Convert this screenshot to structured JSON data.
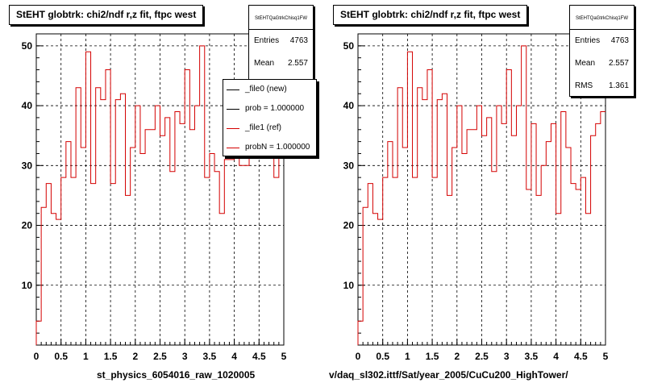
{
  "colors": {
    "ref": "#d40000",
    "new": "#000000",
    "grid": "#000000"
  },
  "left_panel": {
    "title": "StEHT globtrk: chi2/ndf r,z fit, ftpc west",
    "stats": {
      "name": "StEHTQaGtrkChisq1FW",
      "rows": [
        {
          "label": "Entries",
          "value": "4763"
        },
        {
          "label": "Mean",
          "value": "2.557"
        }
      ]
    },
    "legend": [
      {
        "label": "_file0 (new)",
        "color": "#000000"
      },
      {
        "label": "prob = 1.000000",
        "color": "#000000"
      },
      {
        "label": "_file1 (ref)",
        "color": "#d40000"
      },
      {
        "label": "probN = 1.000000",
        "color": "#d40000"
      }
    ],
    "xlabel": "st_physics_6054016_raw_1020005"
  },
  "right_panel": {
    "title": "StEHT globtrk: chi2/ndf r,z fit, ftpc west",
    "stats": {
      "name": "StEHTQaGtrkChisq1FW",
      "rows": [
        {
          "label": "Entries",
          "value": "4763"
        },
        {
          "label": "Mean",
          "value": "2.557"
        },
        {
          "label": "RMS",
          "value": "1.361"
        }
      ]
    },
    "xlabel": "v/daq_sl302.ittf/Sat/year_2005/CuCu200_HighTower/"
  },
  "chart_data": [
    {
      "type": "histogram",
      "title": "StEHT globtrk: chi2/ndf r,z fit, ftpc west",
      "xlabel": "st_physics_6054016_raw_1020005",
      "ylabel": "",
      "xlim": [
        0,
        5
      ],
      "ylim": [
        0,
        52
      ],
      "xticks": [
        "0",
        "0.5",
        "1",
        "1.5",
        "2",
        "2.5",
        "3",
        "3.5",
        "4",
        "4.5",
        "5"
      ],
      "yticks": [
        "10",
        "20",
        "30",
        "40",
        "50"
      ],
      "grid": true,
      "bin_edges": [
        0,
        0.1,
        0.2,
        0.3,
        0.4,
        0.5,
        0.6,
        0.7,
        0.8,
        0.9,
        1.0,
        1.1,
        1.2,
        1.3,
        1.4,
        1.5,
        1.6,
        1.7,
        1.8,
        1.9,
        2.0,
        2.1,
        2.2,
        2.3,
        2.4,
        2.5,
        2.6,
        2.7,
        2.8,
        2.9,
        3.0,
        3.1,
        3.2,
        3.3,
        3.4,
        3.5,
        3.6,
        3.7,
        3.8,
        3.9,
        4.0,
        4.1,
        4.2,
        4.3,
        4.4,
        4.5,
        4.6,
        4.7,
        4.8,
        4.9,
        5.0
      ],
      "series": [
        {
          "name": "_file1 (ref)",
          "color": "#d40000",
          "values": [
            4,
            23,
            27,
            22,
            21,
            28,
            34,
            28,
            43,
            33,
            49,
            27,
            43,
            41,
            46,
            27,
            41,
            42,
            25,
            33,
            40,
            32,
            36,
            36,
            40,
            35,
            38,
            29,
            39,
            37,
            46,
            36,
            40,
            50,
            28,
            32,
            29,
            22,
            31,
            31,
            32,
            30,
            30,
            36,
            38,
            35,
            37,
            40,
            28,
            35
          ],
          "note_values_after_index_33_partly_hidden": false
        }
      ]
    },
    {
      "type": "histogram",
      "title": "StEHT globtrk: chi2/ndf r,z fit, ftpc west",
      "xlabel": "v/daq_sl302.ittf/Sat/year_2005/CuCu200_HighTower/",
      "ylabel": "",
      "xlim": [
        0,
        5
      ],
      "ylim": [
        0,
        52
      ],
      "xticks": [
        "0",
        "0.5",
        "1",
        "1.5",
        "2",
        "2.5",
        "3",
        "3.5",
        "4",
        "4.5",
        "5"
      ],
      "yticks": [
        "10",
        "20",
        "30",
        "40",
        "50"
      ],
      "grid": true,
      "bin_edges": [
        0,
        0.1,
        0.2,
        0.3,
        0.4,
        0.5,
        0.6,
        0.7,
        0.8,
        0.9,
        1.0,
        1.1,
        1.2,
        1.3,
        1.4,
        1.5,
        1.6,
        1.7,
        1.8,
        1.9,
        2.0,
        2.1,
        2.2,
        2.3,
        2.4,
        2.5,
        2.6,
        2.7,
        2.8,
        2.9,
        3.0,
        3.1,
        3.2,
        3.3,
        3.4,
        3.5,
        3.6,
        3.7,
        3.8,
        3.9,
        4.0,
        4.1,
        4.2,
        4.3,
        4.4,
        4.5,
        4.6,
        4.7,
        4.8,
        4.9,
        5.0
      ],
      "series": [
        {
          "name": "",
          "color": "#d40000",
          "values": [
            4,
            23,
            27,
            22,
            21,
            28,
            34,
            28,
            43,
            33,
            49,
            28,
            43,
            41,
            46,
            28,
            41,
            42,
            25,
            33,
            40,
            32,
            36,
            36,
            40,
            35,
            38,
            29,
            40,
            37,
            46,
            35,
            40,
            50,
            26,
            37,
            25,
            30,
            34,
            37,
            22,
            39,
            33,
            27,
            26,
            28,
            22,
            35,
            37,
            39
          ]
        }
      ]
    }
  ]
}
